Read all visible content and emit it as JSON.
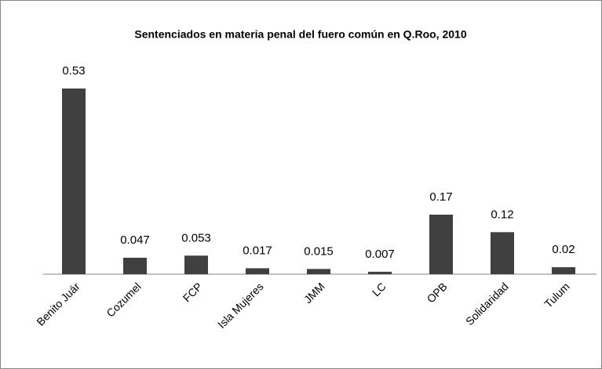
{
  "chart_data": {
    "type": "bar",
    "title": "Sentenciados en materia penal del fuero común en Q.Roo, 2010",
    "categories": [
      "Benito Juár",
      "Cozumel",
      "FCP",
      "Isla Mujeres",
      "JMM",
      "LC",
      "OPB",
      "Solidaridad",
      "Tulum"
    ],
    "values": [
      0.53,
      0.047,
      0.053,
      0.017,
      0.015,
      0.007,
      0.17,
      0.12,
      0.02
    ],
    "color": "#404040"
  }
}
